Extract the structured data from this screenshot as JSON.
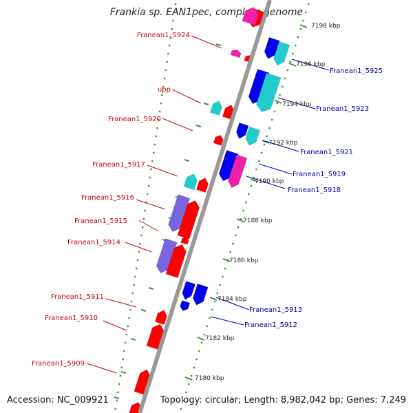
{
  "header": {
    "title": "Frankia sp. EAN1pec, complete genome"
  },
  "footer": {
    "accession": "Accession: NC_009921",
    "topology": "Topology: circular; Length: 8,982,042 bp; Genes: 7,249"
  },
  "colors": {
    "backbone": "#999999",
    "left_label": "#cc0000",
    "right_label": "#0000aa",
    "tick": "#339933",
    "red_gene": "#ff0000",
    "blue_gene": "#0000ee",
    "cyan_gene": "#22cccc",
    "magenta_gene": "#ee22aa",
    "purple_gene": "#7766dd"
  },
  "scale_labels": [
    "7198 kbp",
    "7196 kbp",
    "7194 kbp",
    "7192 kbp",
    "7190 kbp",
    "7188 kbp",
    "7186 kbp",
    "7184 kbp",
    "7182 kbp",
    "7180 kbp"
  ],
  "left_labels": [
    "Franean1_5924",
    "upp",
    "Franean1_5920",
    "Franean1_5917",
    "Franean1_5916",
    "Franean1_5915",
    "Franean1_5914",
    "Franean1_5911",
    "Franean1_5910",
    "Franean1_5909"
  ],
  "right_labels": [
    "Franean1_5925",
    "Franean1_5923",
    "Franean1_5921",
    "Franean1_5919",
    "Franean1_5918",
    "Franean1_5913",
    "Franean1_5912"
  ]
}
